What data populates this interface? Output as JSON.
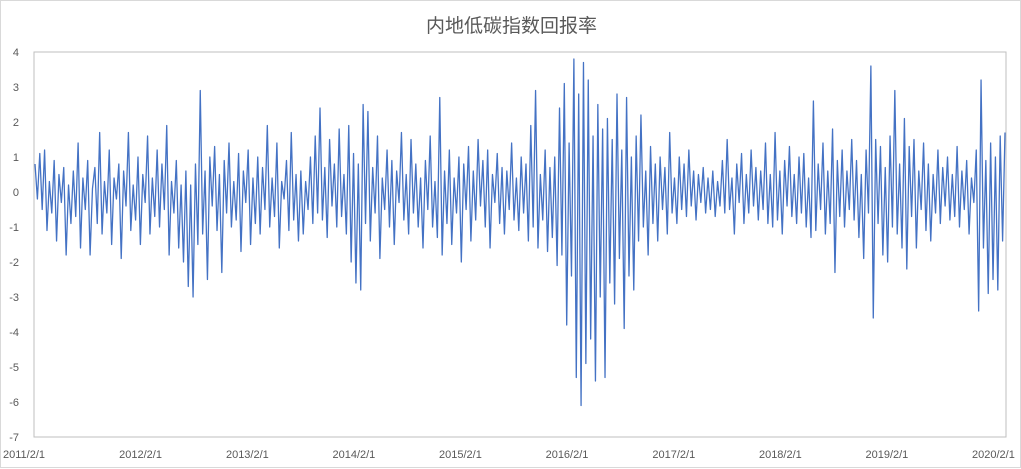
{
  "chart_data": {
    "type": "line",
    "title": "内地低碳指数回报率",
    "xlabel": "",
    "ylabel": "",
    "ylim": [
      -7,
      4
    ],
    "yticks": [
      4,
      3,
      2,
      1,
      0,
      -1,
      -2,
      -3,
      -4,
      -5,
      -6,
      -7
    ],
    "xticks": [
      "2011/2/1",
      "2012/2/1",
      "2013/2/1",
      "2014/2/1",
      "2015/2/1",
      "2016/2/1",
      "2017/2/1",
      "2018/2/1",
      "2019/2/1",
      "2020/2/1"
    ],
    "xrange": [
      "2011/2/1",
      "2020/3/15"
    ],
    "grid": false,
    "legend": "none",
    "line_color": "#4472c4",
    "series": [
      {
        "values": [
          0.8,
          -0.2,
          1.1,
          -0.5,
          1.2,
          -1.1,
          0.3,
          -0.6,
          0.9,
          -1.4,
          0.5,
          -0.3,
          0.7,
          -1.8,
          0.2,
          -0.9,
          0.6,
          -0.7,
          1.4,
          -1.6,
          0.4,
          -0.5,
          0.9,
          -1.8,
          0.1,
          0.7,
          -0.9,
          1.7,
          -1.2,
          0.3,
          -0.6,
          1.2,
          -1.5,
          0.4,
          -0.2,
          0.8,
          -1.9,
          0.6,
          -0.4,
          1.7,
          -1.1,
          0.2,
          -0.8,
          1.0,
          -1.5,
          0.5,
          -0.3,
          1.6,
          -1.2,
          0.4,
          -0.7,
          1.2,
          -1.0,
          0.8,
          -0.5,
          1.9,
          -1.8,
          0.3,
          -0.6,
          0.9,
          -1.6,
          0.2,
          -2.0,
          0.6,
          -2.7,
          0.2,
          -3.0,
          0.8,
          -1.5,
          2.9,
          -1.2,
          0.6,
          -2.5,
          1.0,
          -0.4,
          1.3,
          -1.1,
          0.5,
          -2.3,
          0.9,
          -0.6,
          1.4,
          -1.0,
          0.3,
          -0.8,
          1.1,
          -1.7,
          0.6,
          -0.3,
          1.2,
          -1.5,
          0.4,
          -0.9,
          1.0,
          -1.2,
          0.7,
          -0.5,
          1.9,
          -1.0,
          0.4,
          -0.7,
          1.4,
          -1.6,
          0.3,
          -0.2,
          0.9,
          -1.1,
          1.7,
          -0.8,
          0.5,
          -1.4,
          0.6,
          -1.2,
          0.3,
          -0.5,
          1.0,
          -0.9,
          1.6,
          -0.6,
          2.4,
          -0.8,
          0.7,
          -1.3,
          1.5,
          -0.4,
          0.8,
          -1.0,
          1.8,
          -0.7,
          0.5,
          -1.2,
          1.9,
          -2.0,
          1.1,
          -2.6,
          0.8,
          -2.8,
          2.5,
          -0.9,
          2.3,
          -1.4,
          0.7,
          -0.6,
          1.6,
          -1.9,
          0.4,
          -0.5,
          1.2,
          -1.0,
          0.9,
          -1.5,
          0.6,
          -0.3,
          1.7,
          -0.8,
          0.5,
          -1.2,
          1.5,
          -0.6,
          0.8,
          -1.0,
          0.4,
          -1.6,
          0.9,
          -0.5,
          1.6,
          -1.0,
          0.3,
          -1.3,
          2.7,
          -1.8,
          0.6,
          -0.9,
          1.2,
          -1.5,
          0.4,
          -0.6,
          1.0,
          -2.0,
          0.8,
          -0.5,
          1.3,
          -1.4,
          0.6,
          -0.8,
          1.5,
          -0.4,
          0.9,
          -1.0,
          1.2,
          -1.6,
          0.5,
          -0.3,
          1.1,
          -0.9,
          0.7,
          -1.2,
          0.6,
          -0.5,
          1.4,
          -0.8,
          0.4,
          -1.1,
          1.0,
          -0.6,
          0.8,
          -1.4,
          1.9,
          -1.0,
          2.9,
          -1.6,
          0.5,
          -0.8,
          1.2,
          -1.7,
          0.7,
          -1.3,
          1.0,
          -2.1,
          2.4,
          -1.8,
          3.1,
          -3.8,
          1.4,
          -2.4,
          3.8,
          -5.3,
          2.8,
          -6.1,
          3.7,
          -4.9,
          3.2,
          -4.2,
          1.6,
          -5.4,
          2.5,
          -3.0,
          1.8,
          -5.3,
          2.1,
          -2.6,
          1.5,
          -3.2,
          2.8,
          -1.9,
          1.2,
          -3.9,
          2.7,
          -2.4,
          1.0,
          -2.8,
          1.6,
          -1.4,
          2.2,
          -1.0,
          0.6,
          -1.8,
          1.3,
          -0.9,
          0.8,
          -1.4,
          1.0,
          -0.5,
          0.7,
          -1.2,
          1.7,
          -0.6,
          0.4,
          -0.9,
          1.0,
          -0.5,
          0.8,
          -0.7,
          1.2,
          -0.4,
          0.6,
          -0.8,
          0.5,
          -0.3,
          0.7,
          -0.6,
          0.4,
          -0.5,
          0.6,
          -0.7,
          0.3,
          -0.4,
          0.9,
          -0.6,
          1.5,
          -0.5,
          0.4,
          -1.2,
          0.8,
          -0.3,
          1.1,
          -0.9,
          0.5,
          -0.6,
          1.2,
          -0.4,
          0.7,
          -0.8,
          0.6,
          -0.5,
          1.4,
          -0.9,
          0.5,
          -1.0,
          1.7,
          -0.8,
          0.6,
          -1.2,
          0.9,
          -0.4,
          1.3,
          -0.7,
          0.5,
          -0.9,
          1.0,
          -0.6,
          1.1,
          -1.0,
          0.4,
          -1.3,
          2.6,
          -1.1,
          0.8,
          -0.5,
          1.4,
          -1.2,
          0.6,
          -0.9,
          1.8,
          -2.3,
          0.9,
          -0.7,
          1.2,
          -1.0,
          0.6,
          -0.5,
          1.5,
          -0.8,
          0.9,
          -1.3,
          0.5,
          -1.9,
          1.2,
          -0.6,
          3.6,
          -3.6,
          1.5,
          -0.9,
          1.3,
          -1.8,
          0.7,
          -2.0,
          1.6,
          -1.0,
          2.9,
          -1.2,
          0.8,
          -1.6,
          2.1,
          -2.2,
          1.3,
          -0.7,
          1.5,
          -1.6,
          0.6,
          -0.5,
          1.4,
          -1.1,
          0.8,
          -1.4,
          0.5,
          -0.6,
          1.2,
          -0.9,
          0.7,
          -0.4,
          1.0,
          -0.8,
          0.5,
          -0.7,
          1.3,
          -1.0,
          0.6,
          -0.5,
          0.9,
          -1.2,
          0.4,
          -0.3,
          1.2,
          -3.4,
          3.2,
          -1.6,
          0.9,
          -2.9,
          1.4,
          -2.5,
          1.0,
          -2.8,
          1.6,
          -1.4,
          1.7
        ]
      }
    ]
  }
}
